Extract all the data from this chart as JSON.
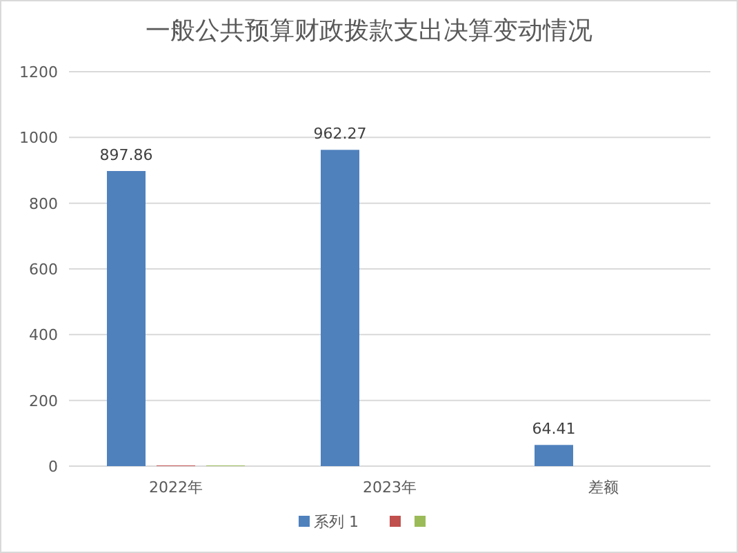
{
  "chart_data": {
    "type": "bar",
    "title": "一般公共预算财政拨款支出决算变动情况",
    "categories": [
      "2022年",
      "2023年",
      "差额"
    ],
    "series": [
      {
        "name": "系列 1",
        "color": "#4f81bd",
        "values": [
          897.86,
          962.27,
          64.41
        ],
        "value_labels": [
          "897.86",
          "962.27",
          "64.41"
        ]
      },
      {
        "color": "#c0504d",
        "values": [
          2,
          null,
          null
        ]
      },
      {
        "color": "#9bbb59",
        "values": [
          2,
          null,
          null
        ]
      }
    ],
    "ylim": [
      0,
      1200
    ],
    "yticks": [
      0,
      200,
      400,
      600,
      800,
      1000,
      1200
    ],
    "grid": "y",
    "legend": "bottom"
  }
}
